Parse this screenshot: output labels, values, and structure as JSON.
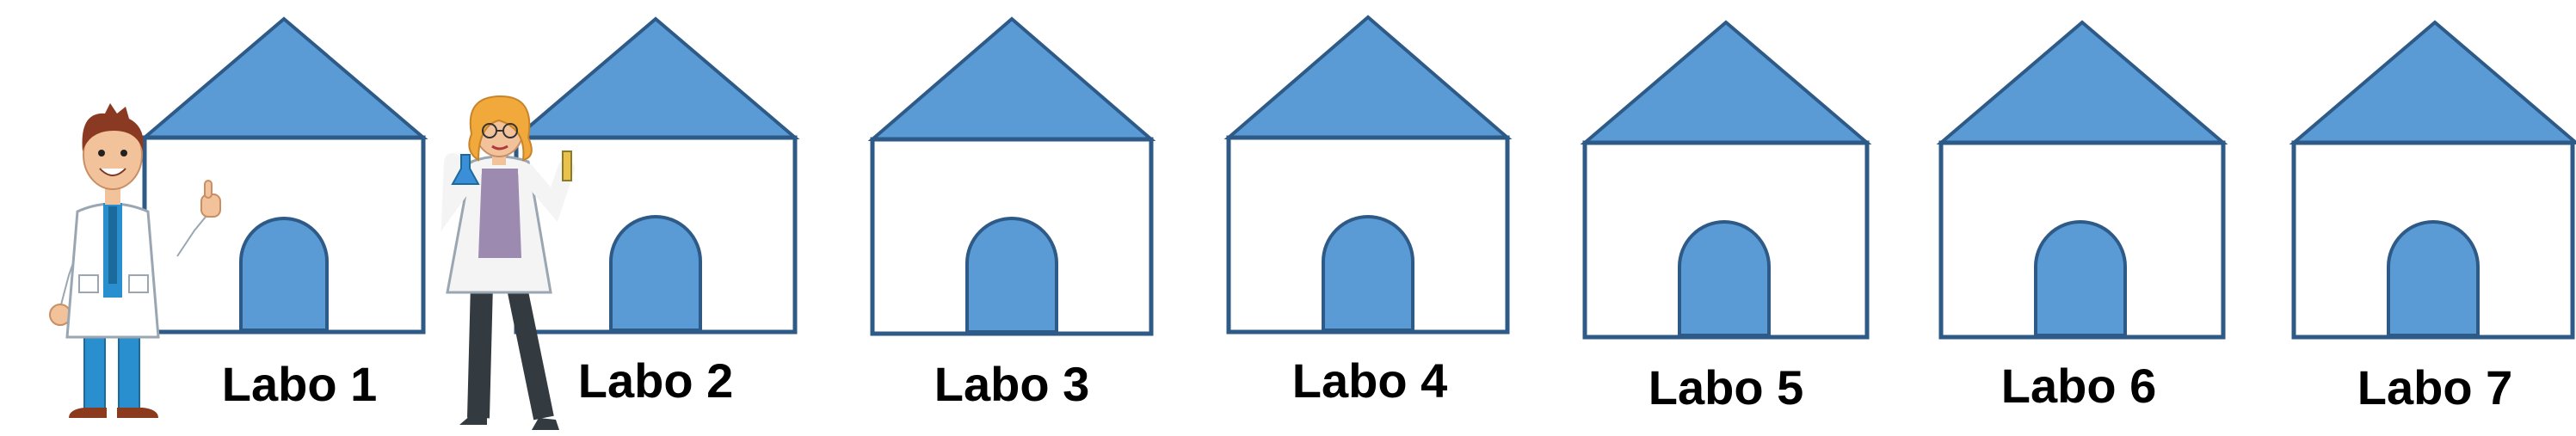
{
  "colors": {
    "roof_fill": "#5b9bd5",
    "outline": "#2e5a88",
    "wall_fill": "#ffffff",
    "door_fill": "#5b9bd5",
    "label": "#000000"
  },
  "labs": [
    {
      "label": "Labo 1"
    },
    {
      "label": "Labo 2"
    },
    {
      "label": "Labo 3"
    },
    {
      "label": "Labo 4"
    },
    {
      "label": "Labo 5"
    },
    {
      "label": "Labo 6"
    },
    {
      "label": "Labo 7"
    }
  ],
  "characters": [
    {
      "name": "male-scientist-illustration",
      "at_lab": 1
    },
    {
      "name": "female-scientist-illustration",
      "at_lab": 2
    }
  ]
}
